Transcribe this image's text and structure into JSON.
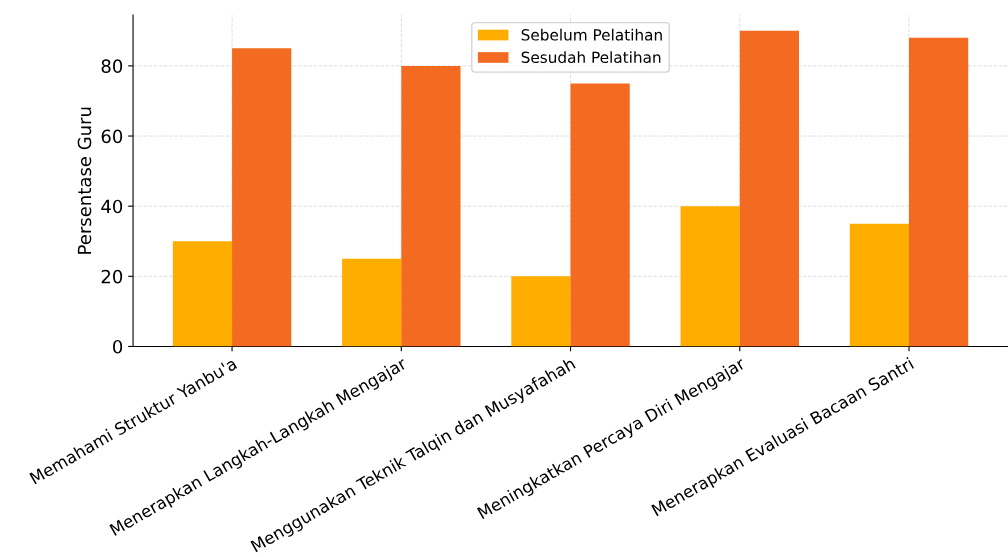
{
  "chart_data": {
    "type": "bar",
    "ylabel": "Persentase Guru",
    "categories": [
      "Memahami Struktur Yanbu'a",
      "Menerapkan Langkah-Langkah Mengajar",
      "Menggunakan Teknik Talqin dan Musyafahah",
      "Meningkatkan Percaya Diri Mengajar",
      "Menerapkan Evaluasi Bacaan Santri"
    ],
    "series": [
      {
        "name": "Sebelum Pelatihan",
        "color": "#ffae00",
        "values": [
          30,
          25,
          20,
          40,
          35
        ]
      },
      {
        "name": "Sesudah Pelatihan",
        "color": "#f26b21",
        "values": [
          85,
          80,
          75,
          90,
          88
        ]
      }
    ],
    "ylim": [
      0,
      94.5
    ],
    "yticks": [
      0,
      20,
      40,
      60,
      80
    ],
    "grid": true,
    "legend": "top"
  }
}
